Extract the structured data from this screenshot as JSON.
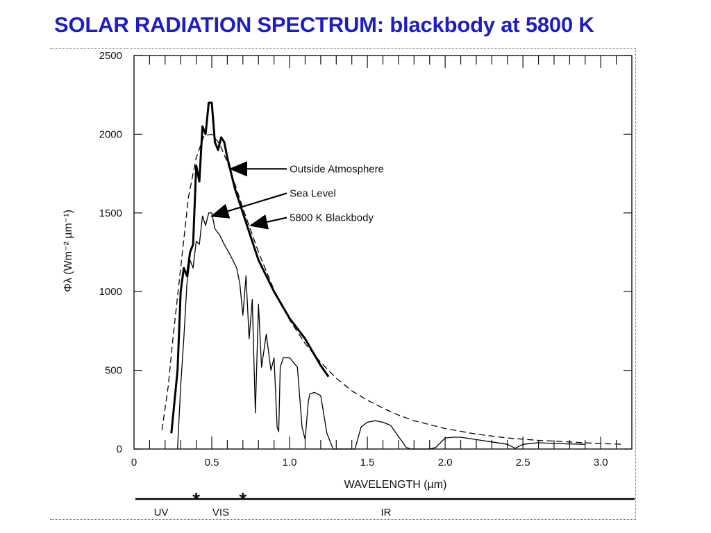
{
  "slide": {
    "title": "SOLAR RADIATION SPECTRUM: blackbody at 5800 K"
  },
  "chart_data": {
    "type": "line",
    "xlabel": "WAVELENGTH (µm)",
    "ylabel": "Φλ (Wm⁻² µm⁻¹)",
    "xlim": [
      0,
      3.2
    ],
    "ylim": [
      0,
      2500
    ],
    "xticks": [
      0,
      0.5,
      1.0,
      1.5,
      2.0,
      2.5,
      3.0
    ],
    "xtick_labels": [
      "0",
      "0.5",
      "1.0",
      "1.5",
      "2.0",
      "2.5",
      "3.0"
    ],
    "yticks": [
      0,
      500,
      1000,
      1500,
      2000,
      2500
    ],
    "ytick_labels": [
      "0",
      "500",
      "1000",
      "1500",
      "2000",
      "2500"
    ],
    "grid": false,
    "series": [
      {
        "name": "Outside Atmosphere",
        "style": "thick",
        "x": [
          0.24,
          0.28,
          0.3,
          0.32,
          0.34,
          0.36,
          0.38,
          0.4,
          0.42,
          0.44,
          0.46,
          0.48,
          0.5,
          0.52,
          0.54,
          0.56,
          0.58,
          0.6,
          0.65,
          0.7,
          0.75,
          0.8,
          0.9,
          1.0,
          1.1,
          1.2,
          1.25
        ],
        "y": [
          100,
          500,
          1000,
          1150,
          1100,
          1250,
          1300,
          1800,
          1700,
          2050,
          2000,
          2200,
          2200,
          1950,
          1900,
          1980,
          1950,
          1850,
          1650,
          1500,
          1350,
          1200,
          1000,
          830,
          700,
          530,
          460
        ]
      },
      {
        "name": "Sea Level",
        "style": "thin",
        "x": [
          0.28,
          0.3,
          0.32,
          0.34,
          0.36,
          0.38,
          0.4,
          0.42,
          0.44,
          0.46,
          0.48,
          0.5,
          0.52,
          0.55,
          0.58,
          0.62,
          0.66,
          0.68,
          0.7,
          0.72,
          0.74,
          0.76,
          0.78,
          0.8,
          0.82,
          0.85,
          0.88,
          0.9,
          0.92,
          0.93,
          0.94,
          0.96,
          1.0,
          1.05,
          1.08,
          1.1,
          1.12,
          1.13,
          1.16,
          1.2,
          1.24,
          1.28,
          1.32,
          1.34,
          1.38,
          1.42,
          1.46,
          1.5,
          1.55,
          1.6,
          1.65,
          1.7,
          1.75,
          1.78,
          1.82,
          1.9,
          1.94,
          2.0,
          2.05,
          2.1,
          2.2,
          2.3,
          2.4,
          2.45,
          2.5,
          2.6,
          2.7,
          2.9
        ],
        "y": [
          0,
          400,
          700,
          1050,
          1200,
          1150,
          1320,
          1300,
          1480,
          1420,
          1500,
          1500,
          1400,
          1360,
          1300,
          1230,
          1150,
          1050,
          850,
          1100,
          700,
          950,
          230,
          920,
          520,
          730,
          500,
          580,
          140,
          110,
          520,
          580,
          580,
          520,
          140,
          60,
          300,
          350,
          360,
          340,
          100,
          0,
          0,
          0,
          0,
          0,
          140,
          170,
          180,
          170,
          150,
          80,
          10,
          0,
          0,
          0,
          10,
          70,
          75,
          75,
          60,
          45,
          30,
          5,
          30,
          40,
          35,
          30
        ]
      },
      {
        "name": "5800 K Blackbody",
        "style": "dashed",
        "x": [
          0.18,
          0.22,
          0.25,
          0.3,
          0.35,
          0.4,
          0.45,
          0.5,
          0.55,
          0.6,
          0.65,
          0.7,
          0.8,
          0.9,
          1.0,
          1.1,
          1.2,
          1.3,
          1.4,
          1.5,
          1.6,
          1.7,
          1.8,
          2.0,
          2.2,
          2.4,
          2.6,
          2.8,
          3.0,
          3.15
        ],
        "y": [
          120,
          400,
          700,
          1150,
          1600,
          1850,
          1990,
          2000,
          1940,
          1820,
          1680,
          1530,
          1250,
          1010,
          820,
          670,
          550,
          450,
          370,
          310,
          260,
          215,
          180,
          130,
          95,
          70,
          55,
          45,
          35,
          30
        ]
      }
    ],
    "annotations": [
      {
        "text": "Outside Atmosphere",
        "x": 1.0,
        "y": 1780,
        "arrow_to": [
          0.62,
          1780
        ]
      },
      {
        "text": "Sea Level",
        "x": 1.0,
        "y": 1625,
        "arrow_to": [
          0.5,
          1480
        ]
      },
      {
        "text": "5800 K Blackbody",
        "x": 1.0,
        "y": 1470,
        "arrow_to": [
          0.75,
          1420
        ]
      }
    ],
    "band_bar": {
      "labels": [
        "UV",
        "VIS",
        "IR"
      ],
      "markers": [
        0.4,
        0.7
      ]
    }
  }
}
